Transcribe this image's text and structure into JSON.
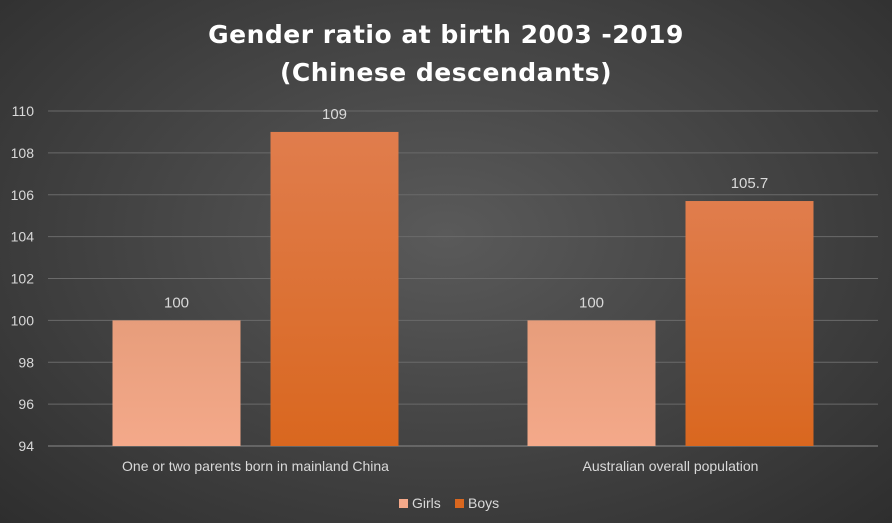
{
  "chart_data": {
    "type": "bar",
    "title_lines": [
      "Gender ratio at birth 2003 -2019",
      "(Chinese descendants)"
    ],
    "categories": [
      "One or two parents born in mainland China",
      "Australian overall population"
    ],
    "series": [
      {
        "name": "Girls",
        "values": [
          100,
          100
        ],
        "color": "#f4a98a",
        "color_dark": "#e79d7b"
      },
      {
        "name": "Boys",
        "values": [
          109,
          105.7
        ],
        "color": "#d9671f",
        "color_dark": "#e07d4d"
      }
    ],
    "data_labels": [
      [
        "100",
        "100"
      ],
      [
        "109",
        "105.7"
      ]
    ],
    "ylim": [
      94,
      110
    ],
    "yticks": [
      94,
      96,
      98,
      100,
      102,
      104,
      106,
      108,
      110
    ],
    "grid": true,
    "legend_position": "bottom-center",
    "xlabel": "",
    "ylabel": ""
  }
}
